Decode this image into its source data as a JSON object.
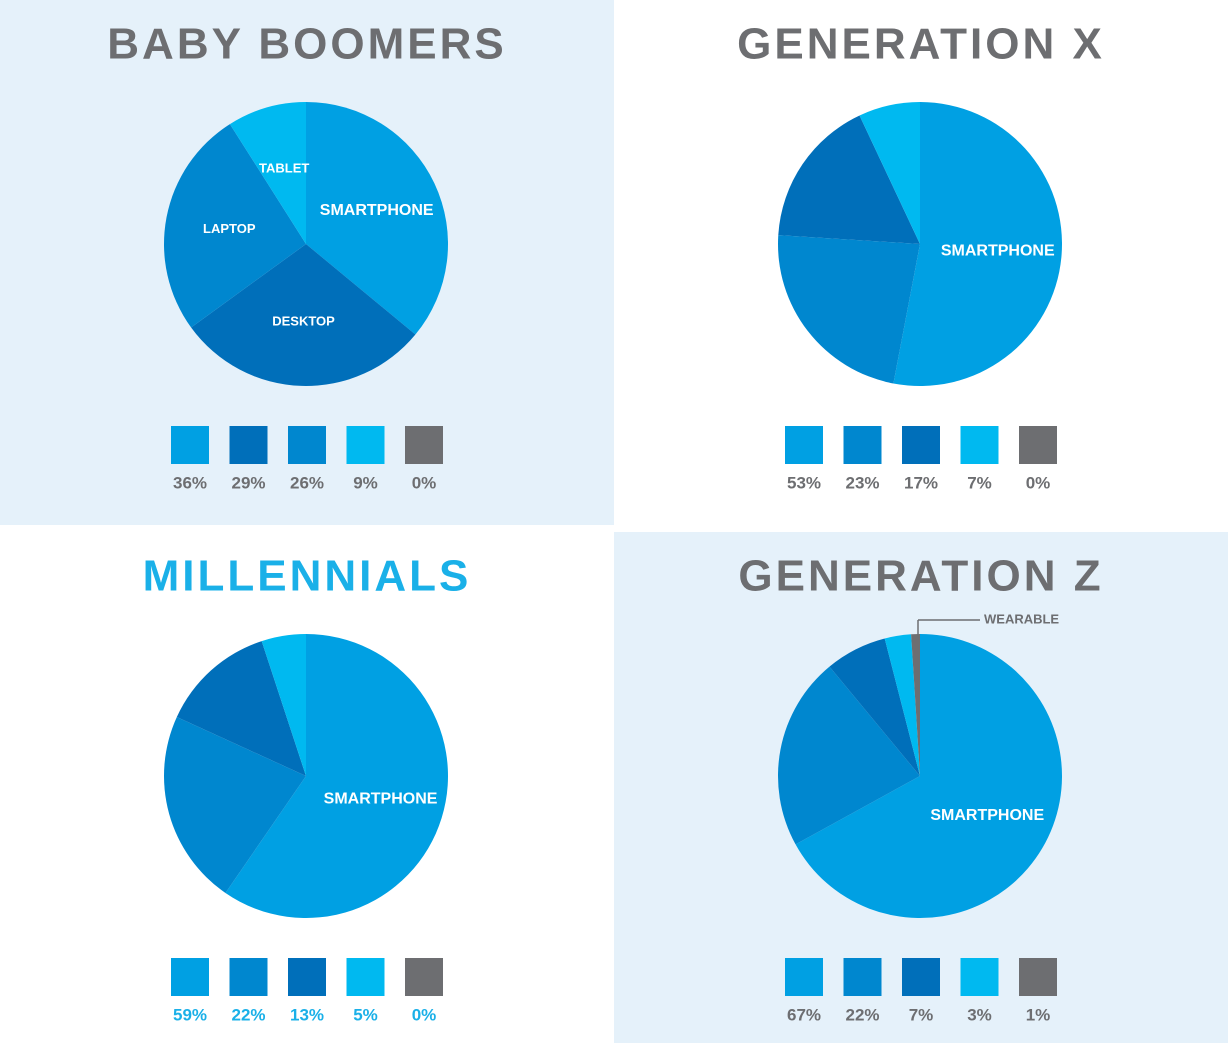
{
  "chart_data": [
    {
      "type": "pie",
      "title": "BABY BOOMERS",
      "title_color": "#6d6e71",
      "background": "#e5f1fa",
      "categories": [
        "SMARTPHONE",
        "DESKTOP",
        "LAPTOP",
        "TABLET",
        null
      ],
      "values": [
        36,
        29,
        26,
        9,
        0
      ],
      "value_labels": [
        "36%",
        "29%",
        "26%",
        "9%",
        "0%"
      ],
      "colors": [
        "#00a0e3",
        "#006fba",
        "#0087cf",
        "#00b9f0",
        "#6d6e71"
      ],
      "label_color": "#6d6e71"
    },
    {
      "type": "pie",
      "title": "GENERATION X",
      "title_color": "#6d6e71",
      "background": "#ffffff",
      "categories": [
        "SMARTPHONE",
        null,
        null,
        null,
        null
      ],
      "values": [
        53,
        23,
        17,
        7,
        0
      ],
      "value_labels": [
        "53%",
        "23%",
        "17%",
        "7%",
        "0%"
      ],
      "colors": [
        "#00a0e3",
        "#0087cf",
        "#006fba",
        "#00b9f0",
        "#6d6e71"
      ],
      "label_color": "#6d6e71"
    },
    {
      "type": "pie",
      "title": "MILLENNIALS",
      "title_color": "#1ab0e8",
      "background": "#ffffff",
      "categories": [
        "SMARTPHONE",
        null,
        null,
        null,
        null
      ],
      "values": [
        59,
        22,
        13,
        5,
        0
      ],
      "value_labels": [
        "59%",
        "22%",
        "13%",
        "5%",
        "0%"
      ],
      "colors": [
        "#00a0e3",
        "#0087cf",
        "#006fba",
        "#00b9f0",
        "#6d6e71"
      ],
      "label_color": "#1ab0e8"
    },
    {
      "type": "pie",
      "title": "GENERATION Z",
      "title_color": "#6d6e71",
      "background": "#e5f1fa",
      "categories": [
        "SMARTPHONE",
        null,
        null,
        null,
        "WEARABLE"
      ],
      "values": [
        67,
        22,
        7,
        3,
        1
      ],
      "value_labels": [
        "67%",
        "22%",
        "7%",
        "3%",
        "1%"
      ],
      "colors": [
        "#00a0e3",
        "#0087cf",
        "#006fba",
        "#00b9f0",
        "#6d6e71"
      ],
      "label_color": "#6d6e71"
    }
  ]
}
